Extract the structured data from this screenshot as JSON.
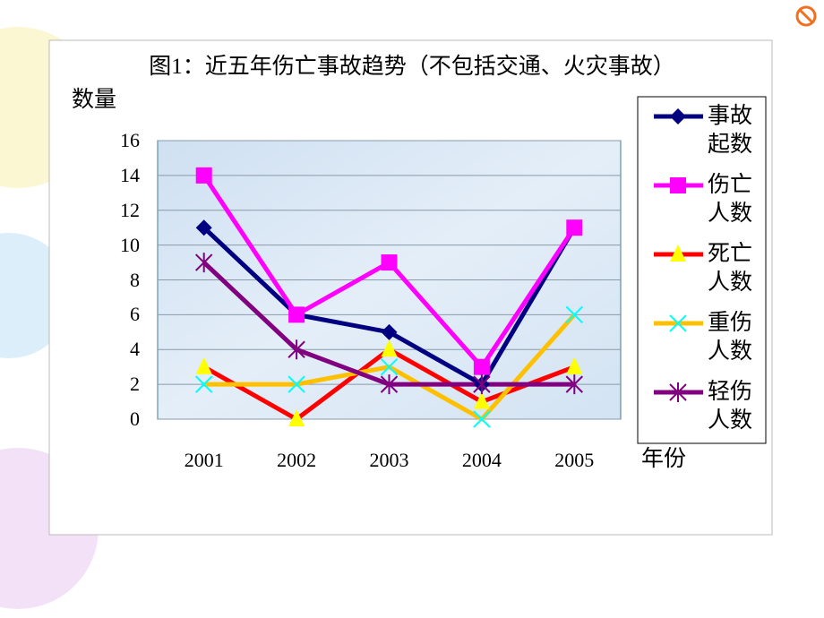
{
  "chart_data": {
    "type": "line",
    "title": "图1：近五年伤亡事故趋势（不包括交通、火灾事故）",
    "y_label": "数量",
    "x_label": "年份",
    "categories": [
      "2001",
      "2002",
      "2003",
      "2004",
      "2005"
    ],
    "ylim": [
      0,
      16
    ],
    "yticks": [
      0,
      2,
      4,
      6,
      8,
      10,
      12,
      14,
      16
    ],
    "grid": true,
    "legend": "right",
    "series": [
      {
        "name": "事故起数",
        "color": "#000080",
        "marker": "diamond",
        "marker_color": "#000080",
        "values": [
          11,
          6,
          5,
          2,
          11
        ]
      },
      {
        "name": "伤亡人数",
        "color": "#ff00ff",
        "marker": "square",
        "marker_color": "#ff00ff",
        "values": [
          14,
          6,
          9,
          3,
          11
        ]
      },
      {
        "name": "死亡人数",
        "color": "#ff0000",
        "marker": "triangle",
        "marker_color": "#ffff00",
        "values": [
          3,
          0,
          4,
          1,
          3
        ]
      },
      {
        "name": "重伤人数",
        "color": "#ffc000",
        "marker": "x",
        "marker_color": "#00ffff",
        "values": [
          2,
          2,
          3,
          0,
          6
        ]
      },
      {
        "name": "轻伤人数",
        "color": "#800080",
        "marker": "star",
        "marker_color": "#800080",
        "values": [
          9,
          4,
          2,
          2,
          2
        ]
      }
    ]
  }
}
